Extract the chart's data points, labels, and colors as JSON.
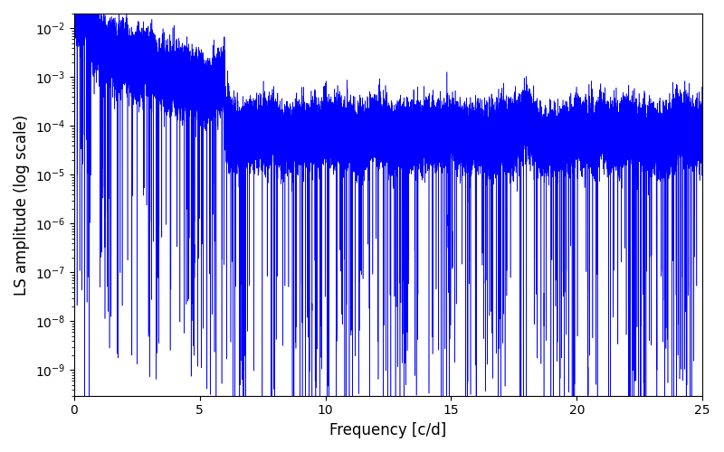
{
  "xlabel": "Frequency [c/d]",
  "ylabel": "LS amplitude (log scale)",
  "xlim": [
    0,
    25
  ],
  "ylim": [
    3e-10,
    0.02
  ],
  "line_color": "#0000ff",
  "line_width": 0.4,
  "background_color": "#ffffff",
  "figsize": [
    8.0,
    5.0
  ],
  "dpi": 100,
  "freq_max": 25.0,
  "n_points": 50000,
  "seed": 12345
}
